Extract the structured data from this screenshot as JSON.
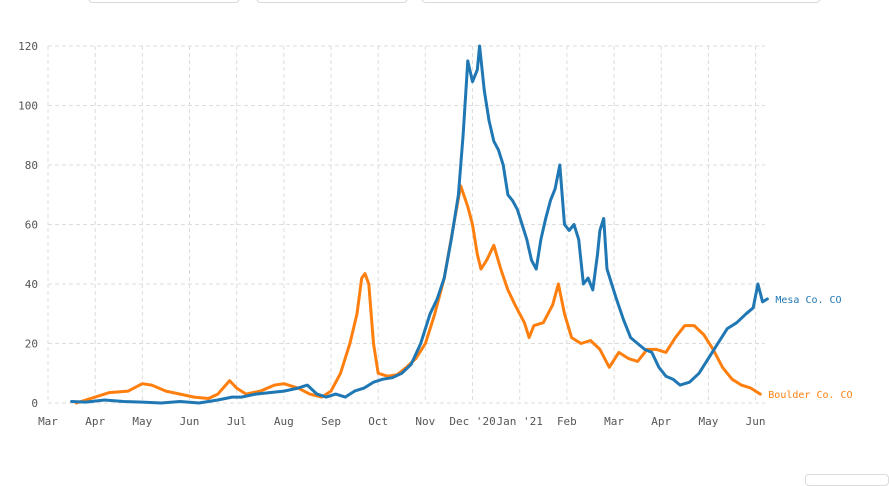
{
  "controls": {
    "top_count": 3
  },
  "chart_data": {
    "type": "line",
    "ylim": [
      0,
      120
    ],
    "yticks": [
      0,
      20,
      40,
      60,
      80,
      100,
      120
    ],
    "xlim": [
      1.0,
      16.2
    ],
    "xticks": [
      {
        "pos": 1,
        "label": "Mar"
      },
      {
        "pos": 2,
        "label": "Apr"
      },
      {
        "pos": 3,
        "label": "May"
      },
      {
        "pos": 4,
        "label": "Jun"
      },
      {
        "pos": 5,
        "label": "Jul"
      },
      {
        "pos": 6,
        "label": "Aug"
      },
      {
        "pos": 7,
        "label": "Sep"
      },
      {
        "pos": 8,
        "label": "Oct"
      },
      {
        "pos": 9,
        "label": "Nov"
      },
      {
        "pos": 10,
        "label": "Dec '20"
      },
      {
        "pos": 11,
        "label": "Jan '21"
      },
      {
        "pos": 12,
        "label": "Feb"
      },
      {
        "pos": 13,
        "label": "Mar"
      },
      {
        "pos": 14,
        "label": "Apr"
      },
      {
        "pos": 15,
        "label": "May"
      },
      {
        "pos": 16,
        "label": "Jun"
      }
    ],
    "grid": true,
    "series": [
      {
        "name": "Boulder Co. CO",
        "color": "#ff7f0e",
        "points": [
          [
            1.6,
            0
          ],
          [
            1.8,
            1
          ],
          [
            2.0,
            2
          ],
          [
            2.3,
            3.5
          ],
          [
            2.7,
            4
          ],
          [
            3.0,
            6.5
          ],
          [
            3.2,
            6
          ],
          [
            3.5,
            4
          ],
          [
            3.8,
            3
          ],
          [
            4.1,
            2
          ],
          [
            4.4,
            1.5
          ],
          [
            4.6,
            3
          ],
          [
            4.85,
            7.5
          ],
          [
            5.0,
            5
          ],
          [
            5.2,
            3
          ],
          [
            5.5,
            4
          ],
          [
            5.8,
            6
          ],
          [
            6.0,
            6.5
          ],
          [
            6.3,
            5
          ],
          [
            6.55,
            3
          ],
          [
            6.8,
            2
          ],
          [
            7.0,
            4
          ],
          [
            7.2,
            10
          ],
          [
            7.4,
            20
          ],
          [
            7.55,
            30
          ],
          [
            7.65,
            42
          ],
          [
            7.72,
            43.5
          ],
          [
            7.8,
            40
          ],
          [
            7.9,
            20
          ],
          [
            8.0,
            10
          ],
          [
            8.2,
            9
          ],
          [
            8.4,
            9.5
          ],
          [
            8.6,
            12
          ],
          [
            8.8,
            15
          ],
          [
            9.0,
            20
          ],
          [
            9.2,
            30
          ],
          [
            9.4,
            42
          ],
          [
            9.6,
            60
          ],
          [
            9.75,
            73
          ],
          [
            9.9,
            66
          ],
          [
            10.0,
            60
          ],
          [
            10.1,
            50
          ],
          [
            10.18,
            45
          ],
          [
            10.3,
            48
          ],
          [
            10.45,
            53
          ],
          [
            10.6,
            45
          ],
          [
            10.75,
            38
          ],
          [
            10.9,
            33
          ],
          [
            11.0,
            30
          ],
          [
            11.1,
            27
          ],
          [
            11.2,
            22
          ],
          [
            11.3,
            26
          ],
          [
            11.5,
            27
          ],
          [
            11.7,
            33
          ],
          [
            11.82,
            40
          ],
          [
            11.95,
            30
          ],
          [
            12.1,
            22
          ],
          [
            12.3,
            20
          ],
          [
            12.5,
            21
          ],
          [
            12.7,
            18
          ],
          [
            12.9,
            12
          ],
          [
            13.1,
            17
          ],
          [
            13.3,
            15
          ],
          [
            13.5,
            14
          ],
          [
            13.7,
            18
          ],
          [
            13.9,
            18
          ],
          [
            14.1,
            17
          ],
          [
            14.3,
            22
          ],
          [
            14.5,
            26
          ],
          [
            14.7,
            26
          ],
          [
            14.9,
            23
          ],
          [
            15.1,
            18
          ],
          [
            15.3,
            12
          ],
          [
            15.5,
            8
          ],
          [
            15.7,
            6
          ],
          [
            15.9,
            5
          ],
          [
            16.1,
            3
          ]
        ]
      },
      {
        "name": "Mesa Co. CO",
        "color": "#1f77b4",
        "points": [
          [
            1.5,
            0.5
          ],
          [
            1.8,
            0.3
          ],
          [
            2.2,
            1
          ],
          [
            2.6,
            0.5
          ],
          [
            3.0,
            0.3
          ],
          [
            3.4,
            0
          ],
          [
            3.8,
            0.5
          ],
          [
            4.2,
            0
          ],
          [
            4.6,
            1
          ],
          [
            4.9,
            2
          ],
          [
            5.1,
            2
          ],
          [
            5.4,
            3
          ],
          [
            5.7,
            3.5
          ],
          [
            6.0,
            4
          ],
          [
            6.3,
            5
          ],
          [
            6.5,
            6
          ],
          [
            6.7,
            3
          ],
          [
            6.9,
            2
          ],
          [
            7.1,
            3
          ],
          [
            7.3,
            2
          ],
          [
            7.5,
            4
          ],
          [
            7.7,
            5
          ],
          [
            7.9,
            7
          ],
          [
            8.1,
            8
          ],
          [
            8.3,
            8.5
          ],
          [
            8.5,
            10
          ],
          [
            8.7,
            13
          ],
          [
            8.9,
            20
          ],
          [
            9.1,
            30
          ],
          [
            9.25,
            35
          ],
          [
            9.4,
            42
          ],
          [
            9.55,
            55
          ],
          [
            9.7,
            70
          ],
          [
            9.8,
            90
          ],
          [
            9.9,
            115
          ],
          [
            10.0,
            108
          ],
          [
            10.1,
            112
          ],
          [
            10.15,
            120
          ],
          [
            10.25,
            105
          ],
          [
            10.35,
            95
          ],
          [
            10.45,
            88
          ],
          [
            10.55,
            85
          ],
          [
            10.65,
            80
          ],
          [
            10.75,
            70
          ],
          [
            10.85,
            68
          ],
          [
            10.95,
            65
          ],
          [
            11.05,
            60
          ],
          [
            11.15,
            55
          ],
          [
            11.25,
            48
          ],
          [
            11.35,
            45
          ],
          [
            11.45,
            55
          ],
          [
            11.55,
            62
          ],
          [
            11.65,
            68
          ],
          [
            11.75,
            72
          ],
          [
            11.85,
            80
          ],
          [
            11.95,
            60
          ],
          [
            12.05,
            58
          ],
          [
            12.15,
            60
          ],
          [
            12.25,
            55
          ],
          [
            12.35,
            40
          ],
          [
            12.45,
            42
          ],
          [
            12.55,
            38
          ],
          [
            12.65,
            50
          ],
          [
            12.7,
            58
          ],
          [
            12.78,
            62
          ],
          [
            12.85,
            45
          ],
          [
            12.95,
            40
          ],
          [
            13.05,
            35
          ],
          [
            13.2,
            28
          ],
          [
            13.35,
            22
          ],
          [
            13.5,
            20
          ],
          [
            13.65,
            18
          ],
          [
            13.8,
            17
          ],
          [
            13.95,
            12
          ],
          [
            14.1,
            9
          ],
          [
            14.25,
            8
          ],
          [
            14.4,
            6
          ],
          [
            14.6,
            7
          ],
          [
            14.8,
            10
          ],
          [
            15.0,
            15
          ],
          [
            15.2,
            20
          ],
          [
            15.4,
            25
          ],
          [
            15.6,
            27
          ],
          [
            15.8,
            30
          ],
          [
            15.95,
            32
          ],
          [
            16.05,
            40
          ],
          [
            16.15,
            34
          ],
          [
            16.25,
            35
          ]
        ]
      }
    ]
  }
}
